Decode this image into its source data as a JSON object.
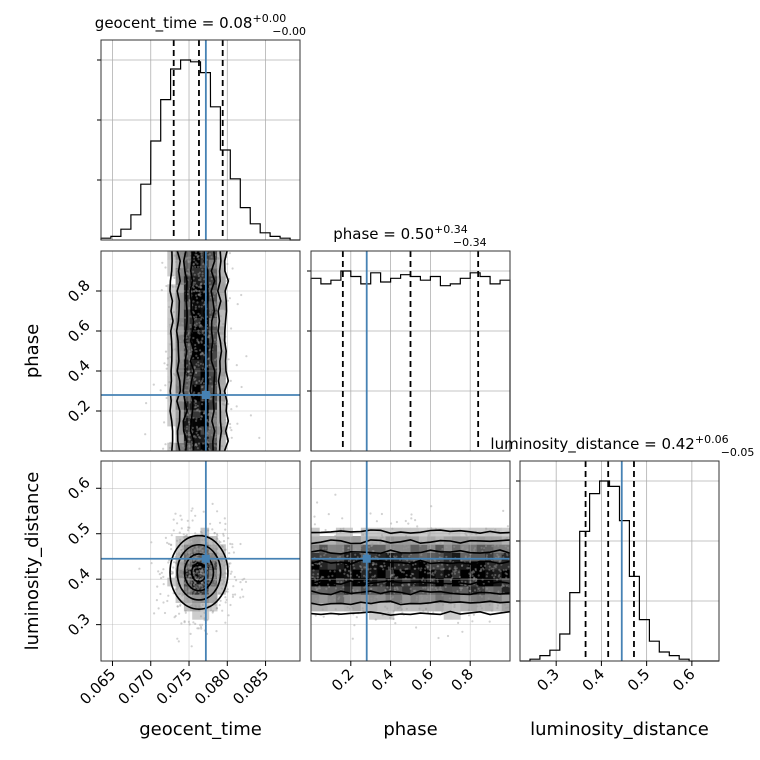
{
  "chart_data": {
    "type": "corner",
    "params": [
      {
        "name": "geocent_time",
        "label": "geocent_time",
        "range": [
          0.0635,
          0.0895
        ],
        "ticks": [
          0.065,
          0.07,
          0.075,
          0.08,
          0.085
        ],
        "tick_labels": [
          "0.065",
          "0.070",
          "0.075",
          "0.080",
          "0.085"
        ],
        "truth": 0.0772,
        "quantiles": [
          0.073,
          0.0763,
          0.0794
        ],
        "title": {
          "main": "geocent_time = 0.08",
          "sup": "+0.00",
          "sub": "−0.00"
        },
        "hist": {
          "edges_start": 0.0635,
          "bin_width": 0.0013,
          "counts": [
            0.01,
            0.02,
            0.06,
            0.14,
            0.31,
            0.55,
            0.78,
            0.95,
            1.0,
            0.99,
            0.93,
            0.74,
            0.5,
            0.34,
            0.18,
            0.09,
            0.04,
            0.02,
            0.01,
            0.0
          ]
        }
      },
      {
        "name": "phase",
        "label": "phase",
        "range": [
          0.0,
          1.0
        ],
        "ticks": [
          0.2,
          0.4,
          0.6,
          0.8
        ],
        "tick_labels": [
          "0.2",
          "0.4",
          "0.6",
          "0.8"
        ],
        "truth": 0.28,
        "quantiles": [
          0.16,
          0.5,
          0.84
        ],
        "title": {
          "main": "phase = 0.50",
          "sup": "+0.34",
          "sub": "−0.34"
        },
        "hist": {
          "edges_start": 0.0,
          "bin_width": 0.05,
          "counts": [
            0.94,
            0.91,
            0.93,
            0.98,
            0.95,
            0.91,
            0.97,
            0.92,
            0.94,
            0.96,
            0.95,
            0.93,
            0.95,
            0.9,
            0.91,
            0.94,
            0.97,
            0.95,
            0.91,
            0.93
          ]
        }
      },
      {
        "name": "luminosity_distance",
        "label": "luminosity_distance",
        "range": [
          0.22,
          0.66
        ],
        "ticks": [
          0.3,
          0.4,
          0.5,
          0.6
        ],
        "tick_labels": [
          "0.3",
          "0.4",
          "0.5",
          "0.6"
        ],
        "truth": 0.445,
        "quantiles": [
          0.365,
          0.415,
          0.472
        ],
        "title": {
          "main": "luminosity_distance = 0.42",
          "sup": "+0.06",
          "sub": "−0.05"
        },
        "hist": {
          "edges_start": 0.22,
          "bin_width": 0.022,
          "counts": [
            0.0,
            0.01,
            0.03,
            0.06,
            0.15,
            0.38,
            0.72,
            0.93,
            1.0,
            0.97,
            0.78,
            0.47,
            0.23,
            0.11,
            0.05,
            0.03,
            0.01,
            0.0,
            0.0,
            0.0
          ]
        }
      }
    ],
    "joint": [
      {
        "x": "geocent_time",
        "y": "phase",
        "x_spread": 0.0018,
        "y_spread": null
      },
      {
        "x": "geocent_time",
        "y": "luminosity_distance",
        "x_spread": 0.0018,
        "y_spread": 0.045
      },
      {
        "x": "phase",
        "y": "luminosity_distance",
        "x_spread": null,
        "y_spread": 0.045
      }
    ],
    "colors": {
      "truth": "#4682b4",
      "hist": "#000000",
      "grid": "#b0b0b0",
      "scatter": "#9a9a9a",
      "density_dark": "#000000"
    },
    "grid": true
  }
}
